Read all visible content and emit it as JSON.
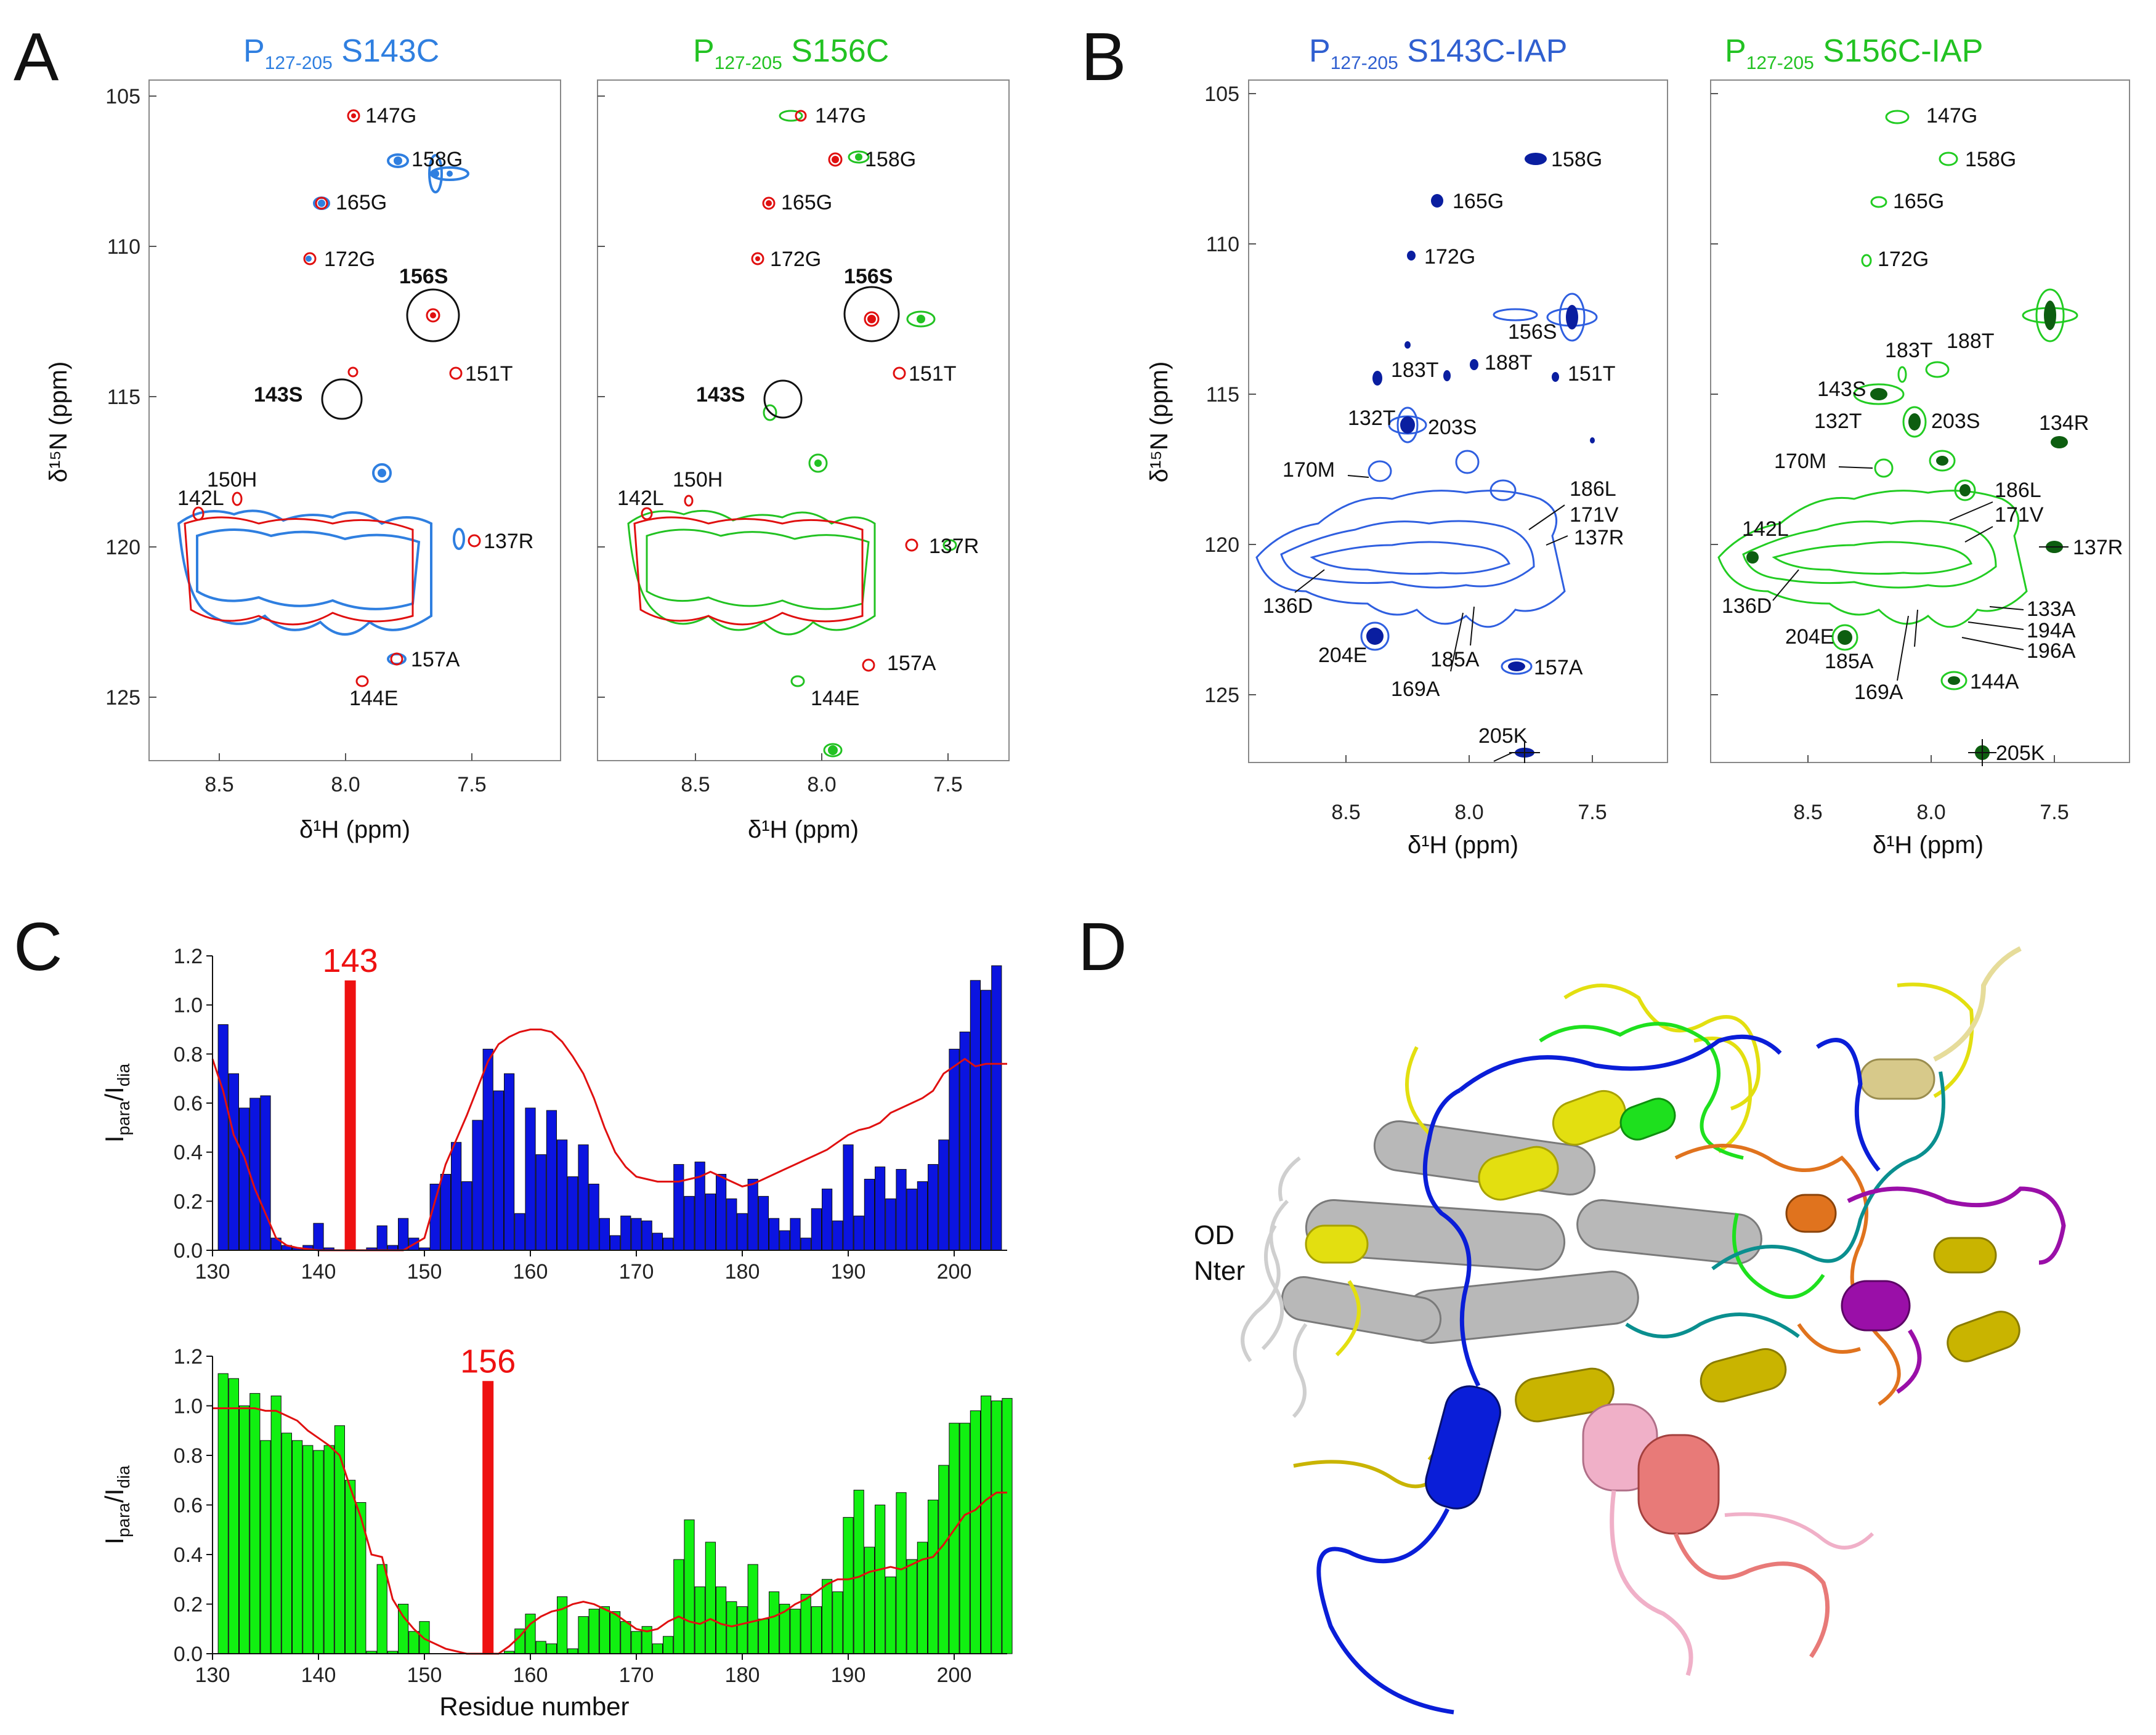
{
  "colors": {
    "blue_light": "#2f7fe0",
    "blue_dark": "#0a1ea0",
    "green": "#22c222",
    "red": "#e01010",
    "dark_green": "#0d5e10"
  },
  "panel_a": {
    "letter": "A",
    "spectrum_1": {
      "title_main": "P",
      "title_sub": "127-205",
      "title_tail": " S143C"
    },
    "spectrum_2": {
      "title_main": "P",
      "title_sub": "127-205",
      "title_tail": " S156C"
    },
    "x_axis_label": "δ¹H (ppm)",
    "y_axis_label": "δ¹⁵N (ppm)",
    "x_ticks": [
      "8.5",
      "8.0",
      "7.5"
    ],
    "y_ticks": [
      "105",
      "110",
      "115",
      "120",
      "125"
    ],
    "peak_labels_1": [
      "147G",
      "158G",
      "165G",
      "172G",
      "156S",
      "143S",
      "151T",
      "150H",
      "142L",
      "137R",
      "157A",
      "144E"
    ],
    "peak_labels_2": [
      "147G",
      "158G",
      "165G",
      "172G",
      "156S",
      "143S",
      "151T",
      "150H",
      "142L",
      "137R",
      "157A",
      "144E"
    ]
  },
  "panel_b": {
    "letter": "B",
    "spectrum_1": {
      "title_main": "P",
      "title_sub": "127-205",
      "title_tail": " S143C-IAP"
    },
    "spectrum_2": {
      "title_main": "P",
      "title_sub": "127-205",
      "title_tail": " S156C-IAP"
    },
    "x_axis_label": "δ¹H (ppm)",
    "y_axis_label": "δ¹⁵N (ppm)",
    "x_ticks": [
      "8.5",
      "8.0",
      "7.5"
    ],
    "y_ticks": [
      "105",
      "110",
      "115",
      "120",
      "125"
    ],
    "peak_labels_1": [
      "158G",
      "165G",
      "172G",
      "156S",
      "183T",
      "188T",
      "151T",
      "132T",
      "203S",
      "170M",
      "186L",
      "171V",
      "137R",
      "136D",
      "204E",
      "185A",
      "169A",
      "157A",
      "205K"
    ],
    "peak_labels_2": [
      "147G",
      "158G",
      "165G",
      "172G",
      "183T",
      "188T",
      "143S",
      "132T",
      "203S",
      "134R",
      "170M",
      "186L",
      "171V",
      "142L",
      "137R",
      "136D",
      "133A",
      "204E",
      "194A",
      "196A",
      "185A",
      "169A",
      "144A",
      "205K"
    ]
  },
  "panel_c": {
    "letter": "C"
  },
  "panel_d": {
    "letter": "D",
    "label_line1": "OD",
    "label_line2": "Nter"
  },
  "chart_data": [
    {
      "type": "bar",
      "id": "S143C_PRE",
      "ylabel_main": "I",
      "ylabel_sub1": "para",
      "ylabel_mid": "/I",
      "ylabel_sub2": "dia",
      "xlabel": "",
      "xlim": [
        130,
        205
      ],
      "ylim": [
        0,
        1.2
      ],
      "x_ticks": [
        "130",
        "140",
        "150",
        "160",
        "170",
        "180",
        "190",
        "200"
      ],
      "y_ticks": [
        "0.0",
        "0.2",
        "0.4",
        "0.6",
        "0.8",
        "1.0",
        "1.2"
      ],
      "spin_label_position": 143,
      "spin_label_text": "143",
      "bar_color": "#0b14e0",
      "bars": [
        [
          131,
          0.92
        ],
        [
          132,
          0.72
        ],
        [
          133,
          0.58
        ],
        [
          134,
          0.62
        ],
        [
          135,
          0.63
        ],
        [
          136,
          0.05
        ],
        [
          137,
          0.02
        ],
        [
          138,
          0.01
        ],
        [
          139,
          0.02
        ],
        [
          140,
          0.11
        ],
        [
          141,
          0.01
        ],
        [
          145,
          0.01
        ],
        [
          146,
          0.1
        ],
        [
          147,
          0.02
        ],
        [
          148,
          0.13
        ],
        [
          149,
          0.05
        ],
        [
          150,
          0.01
        ],
        [
          151,
          0.27
        ],
        [
          152,
          0.31
        ],
        [
          153,
          0.44
        ],
        [
          154,
          0.28
        ],
        [
          155,
          0.53
        ],
        [
          156,
          0.82
        ],
        [
          157,
          0.65
        ],
        [
          158,
          0.72
        ],
        [
          159,
          0.15
        ],
        [
          160,
          0.58
        ],
        [
          161,
          0.39
        ],
        [
          162,
          0.57
        ],
        [
          163,
          0.45
        ],
        [
          164,
          0.3
        ],
        [
          165,
          0.43
        ],
        [
          166,
          0.27
        ],
        [
          167,
          0.13
        ],
        [
          168,
          0.06
        ],
        [
          169,
          0.14
        ],
        [
          170,
          0.13
        ],
        [
          171,
          0.12
        ],
        [
          172,
          0.07
        ],
        [
          173,
          0.05
        ],
        [
          174,
          0.35
        ],
        [
          175,
          0.22
        ],
        [
          176,
          0.36
        ],
        [
          177,
          0.23
        ],
        [
          178,
          0.31
        ],
        [
          179,
          0.21
        ],
        [
          180,
          0.15
        ],
        [
          181,
          0.29
        ],
        [
          182,
          0.22
        ],
        [
          183,
          0.13
        ],
        [
          184,
          0.08
        ],
        [
          185,
          0.13
        ],
        [
          186,
          0.05
        ],
        [
          187,
          0.17
        ],
        [
          188,
          0.25
        ],
        [
          189,
          0.12
        ],
        [
          190,
          0.43
        ],
        [
          191,
          0.14
        ],
        [
          192,
          0.29
        ],
        [
          193,
          0.34
        ],
        [
          194,
          0.21
        ],
        [
          195,
          0.33
        ],
        [
          196,
          0.25
        ],
        [
          197,
          0.28
        ],
        [
          198,
          0.35
        ],
        [
          199,
          0.45
        ],
        [
          200,
          0.82
        ],
        [
          201,
          0.89
        ],
        [
          202,
          1.1
        ],
        [
          203,
          1.06
        ],
        [
          204,
          1.16
        ]
      ],
      "curve_color": "#e01010",
      "curve": [
        [
          130,
          0.78
        ],
        [
          131,
          0.65
        ],
        [
          132,
          0.47
        ],
        [
          133,
          0.38
        ],
        [
          134,
          0.25
        ],
        [
          135,
          0.15
        ],
        [
          136,
          0.05
        ],
        [
          137,
          0.02
        ],
        [
          138,
          0.01
        ],
        [
          140,
          0.0
        ],
        [
          145,
          0.0
        ],
        [
          148,
          0.0
        ],
        [
          150,
          0.05
        ],
        [
          151,
          0.2
        ],
        [
          152,
          0.35
        ],
        [
          153,
          0.45
        ],
        [
          154,
          0.55
        ],
        [
          155,
          0.66
        ],
        [
          156,
          0.77
        ],
        [
          157,
          0.84
        ],
        [
          158,
          0.87
        ],
        [
          159,
          0.89
        ],
        [
          160,
          0.9
        ],
        [
          161,
          0.9
        ],
        [
          162,
          0.89
        ],
        [
          163,
          0.85
        ],
        [
          164,
          0.79
        ],
        [
          165,
          0.72
        ],
        [
          166,
          0.62
        ],
        [
          167,
          0.5
        ],
        [
          168,
          0.4
        ],
        [
          169,
          0.34
        ],
        [
          170,
          0.3
        ],
        [
          171,
          0.29
        ],
        [
          172,
          0.28
        ],
        [
          173,
          0.28
        ],
        [
          174,
          0.28
        ],
        [
          175,
          0.29
        ],
        [
          176,
          0.3
        ],
        [
          177,
          0.32
        ],
        [
          178,
          0.3
        ],
        [
          179,
          0.28
        ],
        [
          180,
          0.26
        ],
        [
          181,
          0.27
        ],
        [
          182,
          0.29
        ],
        [
          183,
          0.31
        ],
        [
          184,
          0.33
        ],
        [
          185,
          0.35
        ],
        [
          186,
          0.37
        ],
        [
          187,
          0.39
        ],
        [
          188,
          0.41
        ],
        [
          189,
          0.44
        ],
        [
          190,
          0.47
        ],
        [
          191,
          0.49
        ],
        [
          192,
          0.5
        ],
        [
          193,
          0.52
        ],
        [
          194,
          0.56
        ],
        [
          195,
          0.58
        ],
        [
          196,
          0.6
        ],
        [
          197,
          0.62
        ],
        [
          198,
          0.65
        ],
        [
          199,
          0.72
        ],
        [
          200,
          0.75
        ],
        [
          201,
          0.78
        ],
        [
          202,
          0.75
        ],
        [
          203,
          0.76
        ],
        [
          204,
          0.76
        ],
        [
          205,
          0.76
        ]
      ]
    },
    {
      "type": "bar",
      "id": "S156C_PRE",
      "ylabel_main": "I",
      "ylabel_sub1": "para",
      "ylabel_mid": "/I",
      "ylabel_sub2": "dia",
      "xlabel": "Residue number",
      "xlim": [
        130,
        205
      ],
      "ylim": [
        0,
        1.2
      ],
      "x_ticks": [
        "130",
        "140",
        "150",
        "160",
        "170",
        "180",
        "190",
        "200"
      ],
      "y_ticks": [
        "0.0",
        "0.2",
        "0.4",
        "0.6",
        "0.8",
        "1.0",
        "1.2"
      ],
      "spin_label_position": 156,
      "spin_label_text": "156",
      "bar_color": "#11f011",
      "bars": [
        [
          131,
          1.13
        ],
        [
          132,
          1.11
        ],
        [
          133,
          1.0
        ],
        [
          134,
          1.05
        ],
        [
          135,
          0.86
        ],
        [
          136,
          1.04
        ],
        [
          137,
          0.89
        ],
        [
          138,
          0.86
        ],
        [
          139,
          0.84
        ],
        [
          140,
          0.82
        ],
        [
          141,
          0.84
        ],
        [
          142,
          0.92
        ],
        [
          143,
          0.7
        ],
        [
          144,
          0.61
        ],
        [
          145,
          0.01
        ],
        [
          146,
          0.36
        ],
        [
          147,
          0.01
        ],
        [
          148,
          0.2
        ],
        [
          149,
          0.09
        ],
        [
          150,
          0.13
        ],
        [
          156,
          0.01
        ],
        [
          158,
          0.01
        ],
        [
          159,
          0.1
        ],
        [
          160,
          0.16
        ],
        [
          161,
          0.05
        ],
        [
          162,
          0.04
        ],
        [
          163,
          0.23
        ],
        [
          164,
          0.02
        ],
        [
          165,
          0.15
        ],
        [
          166,
          0.18
        ],
        [
          167,
          0.19
        ],
        [
          168,
          0.17
        ],
        [
          169,
          0.13
        ],
        [
          170,
          0.09
        ],
        [
          171,
          0.11
        ],
        [
          172,
          0.04
        ],
        [
          173,
          0.07
        ],
        [
          174,
          0.38
        ],
        [
          175,
          0.54
        ],
        [
          176,
          0.27
        ],
        [
          177,
          0.45
        ],
        [
          178,
          0.27
        ],
        [
          179,
          0.21
        ],
        [
          180,
          0.19
        ],
        [
          181,
          0.36
        ],
        [
          182,
          0.14
        ],
        [
          183,
          0.25
        ],
        [
          184,
          0.2
        ],
        [
          185,
          0.18
        ],
        [
          186,
          0.24
        ],
        [
          187,
          0.19
        ],
        [
          188,
          0.3
        ],
        [
          189,
          0.25
        ],
        [
          190,
          0.55
        ],
        [
          191,
          0.66
        ],
        [
          192,
          0.43
        ],
        [
          193,
          0.6
        ],
        [
          194,
          0.31
        ],
        [
          195,
          0.65
        ],
        [
          196,
          0.38
        ],
        [
          197,
          0.45
        ],
        [
          198,
          0.62
        ],
        [
          199,
          0.76
        ],
        [
          200,
          0.93
        ],
        [
          201,
          0.93
        ],
        [
          202,
          0.98
        ],
        [
          203,
          1.04
        ],
        [
          204,
          1.02
        ],
        [
          205,
          1.03
        ]
      ],
      "curve_color": "#e01010",
      "curve": [
        [
          130,
          0.99
        ],
        [
          131,
          0.99
        ],
        [
          132,
          0.99
        ],
        [
          133,
          0.99
        ],
        [
          134,
          0.99
        ],
        [
          135,
          0.98
        ],
        [
          136,
          0.98
        ],
        [
          137,
          0.96
        ],
        [
          138,
          0.94
        ],
        [
          139,
          0.9
        ],
        [
          140,
          0.87
        ],
        [
          141,
          0.84
        ],
        [
          142,
          0.8
        ],
        [
          143,
          0.67
        ],
        [
          144,
          0.55
        ],
        [
          145,
          0.4
        ],
        [
          146,
          0.39
        ],
        [
          147,
          0.22
        ],
        [
          148,
          0.15
        ],
        [
          149,
          0.1
        ],
        [
          150,
          0.06
        ],
        [
          151,
          0.04
        ],
        [
          152,
          0.02
        ],
        [
          153,
          0.01
        ],
        [
          154,
          0.0
        ],
        [
          156,
          0.0
        ],
        [
          157,
          0.0
        ],
        [
          158,
          0.03
        ],
        [
          159,
          0.07
        ],
        [
          160,
          0.12
        ],
        [
          161,
          0.15
        ],
        [
          162,
          0.17
        ],
        [
          163,
          0.18
        ],
        [
          164,
          0.2
        ],
        [
          165,
          0.21
        ],
        [
          166,
          0.2
        ],
        [
          167,
          0.18
        ],
        [
          168,
          0.16
        ],
        [
          169,
          0.13
        ],
        [
          170,
          0.1
        ],
        [
          171,
          0.09
        ],
        [
          172,
          0.1
        ],
        [
          173,
          0.13
        ],
        [
          174,
          0.15
        ],
        [
          175,
          0.13
        ],
        [
          176,
          0.12
        ],
        [
          177,
          0.14
        ],
        [
          178,
          0.12
        ],
        [
          179,
          0.11
        ],
        [
          180,
          0.12
        ],
        [
          181,
          0.13
        ],
        [
          182,
          0.14
        ],
        [
          183,
          0.15
        ],
        [
          184,
          0.17
        ],
        [
          185,
          0.2
        ],
        [
          186,
          0.22
        ],
        [
          187,
          0.25
        ],
        [
          188,
          0.28
        ],
        [
          189,
          0.3
        ],
        [
          190,
          0.3
        ],
        [
          191,
          0.31
        ],
        [
          192,
          0.33
        ],
        [
          193,
          0.34
        ],
        [
          194,
          0.35
        ],
        [
          195,
          0.34
        ],
        [
          196,
          0.36
        ],
        [
          197,
          0.38
        ],
        [
          198,
          0.39
        ],
        [
          199,
          0.44
        ],
        [
          200,
          0.5
        ],
        [
          201,
          0.56
        ],
        [
          202,
          0.58
        ],
        [
          203,
          0.62
        ],
        [
          204,
          0.65
        ],
        [
          205,
          0.65
        ]
      ]
    }
  ]
}
